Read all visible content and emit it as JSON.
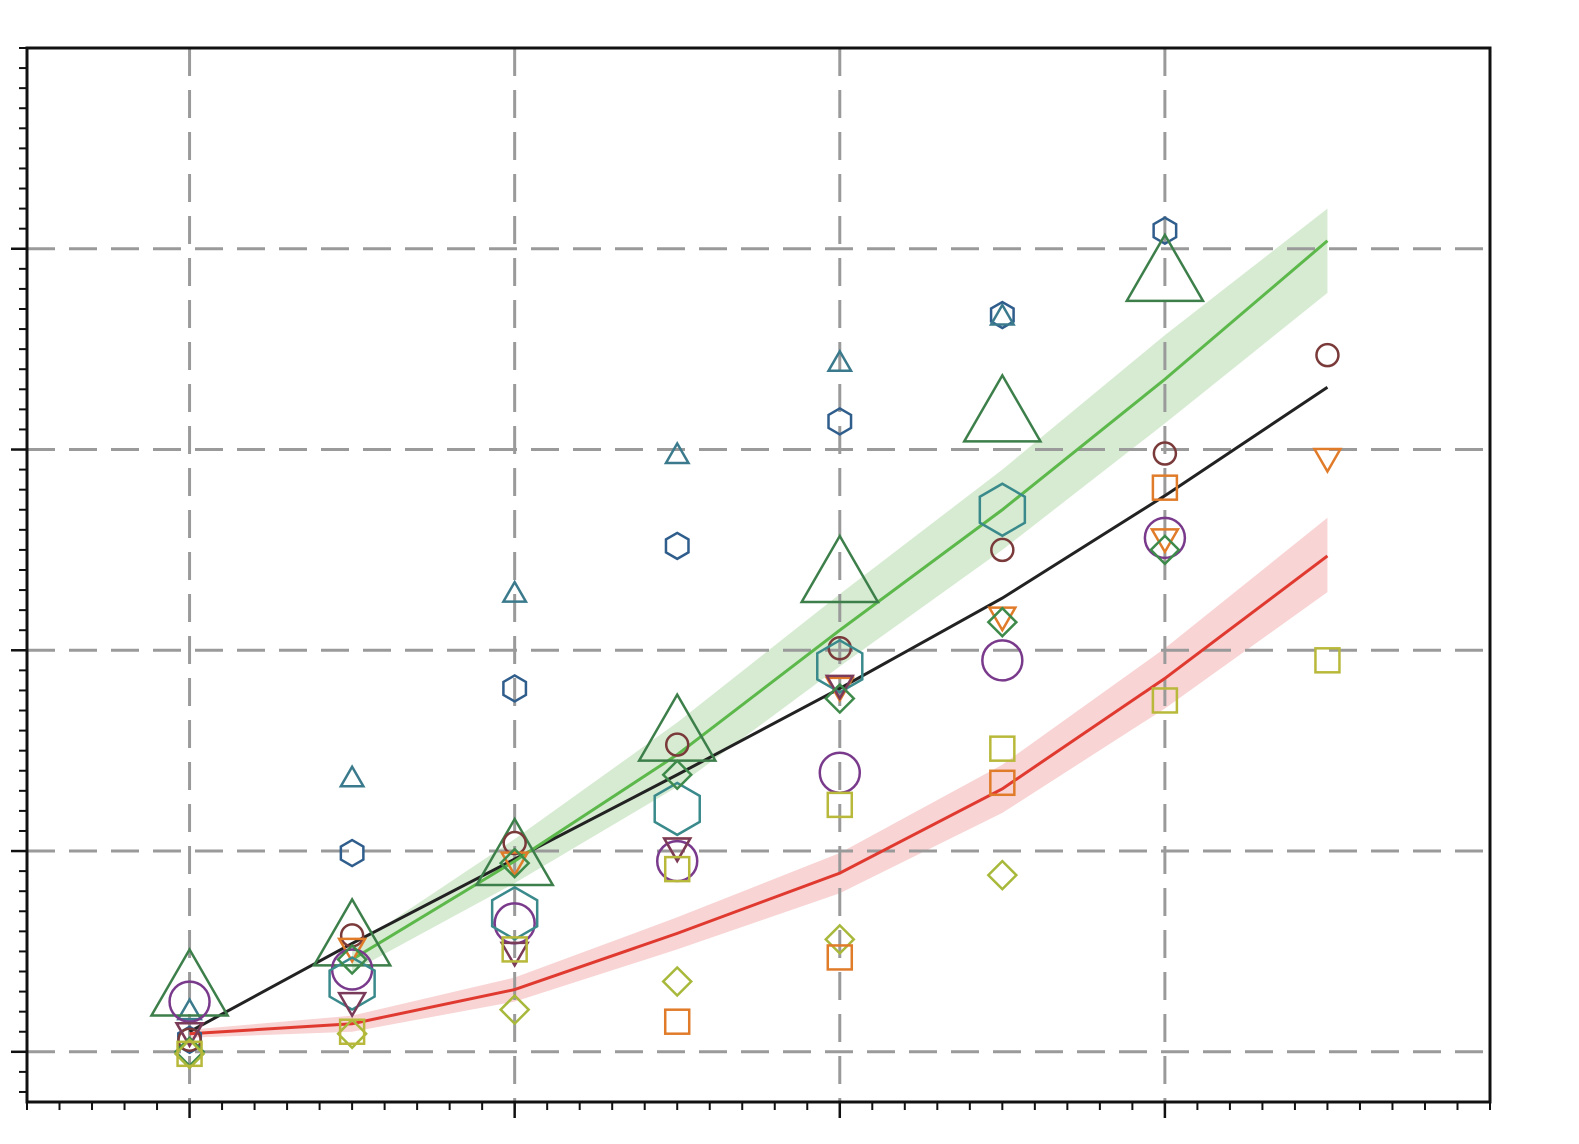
{
  "chart_data": {
    "type": "scatter",
    "xlim": [
      -0.5,
      4
    ],
    "ylim": [
      -0.25,
      5
    ],
    "xticks": [
      0,
      1,
      2,
      3
    ],
    "yticks": [
      0,
      1,
      2,
      3,
      4
    ],
    "grid": true,
    "series": [
      {
        "marker": "hexagon",
        "color": "#2f5d8c",
        "x": [
          0,
          0.5,
          1,
          1.5,
          2,
          2.5,
          3
        ],
        "values": [
          0.06,
          0.99,
          1.81,
          2.52,
          3.14,
          3.67,
          4.09
        ]
      },
      {
        "marker": "triangle-up",
        "color": "#3a7a8c",
        "x": [
          0,
          0.5,
          1,
          1.5,
          2,
          2.5
        ],
        "values": [
          0.21,
          1.37,
          2.29,
          2.98,
          3.44,
          3.67
        ]
      },
      {
        "marker": "big-triangle-up",
        "color": "#3d7f4a",
        "x": [
          0,
          0.5,
          1,
          1.5,
          2,
          2.5,
          3
        ],
        "values": [
          0.34,
          0.59,
          0.99,
          1.61,
          2.4,
          3.2,
          3.9
        ]
      },
      {
        "marker": "circle",
        "color": "#7a3a3a",
        "x": [
          0,
          0.5,
          1,
          1.5,
          2,
          2.5,
          3,
          3.5
        ],
        "values": [
          0.06,
          0.58,
          1.04,
          1.53,
          2.01,
          2.5,
          2.98,
          3.47
        ]
      },
      {
        "marker": "triangle-down",
        "color": "#e07b2a",
        "x": [
          0,
          0.5,
          1,
          1.5,
          2,
          2.5,
          3,
          3.5
        ],
        "values": [
          0.09,
          0.51,
          0.94,
          1.01,
          1.81,
          2.16,
          2.55,
          2.95
        ]
      },
      {
        "marker": "big-circle",
        "color": "#7a3a8c",
        "x": [
          0,
          0.5,
          1,
          1.5,
          2,
          2.5,
          3
        ],
        "values": [
          0.25,
          0.41,
          0.64,
          0.95,
          1.39,
          1.95,
          2.56
        ]
      },
      {
        "marker": "big-hexagon",
        "color": "#3a8a8c",
        "x": [
          0.5,
          1,
          1.5,
          2,
          2.5
        ],
        "values": [
          0.34,
          0.69,
          1.21,
          1.92,
          2.7
        ]
      },
      {
        "marker": "triangle-down",
        "color": "#7a3a5a",
        "x": [
          0,
          0.5,
          1,
          1.5,
          2
        ],
        "values": [
          0.09,
          0.24,
          0.49,
          1.01,
          1.82
        ]
      },
      {
        "marker": "diamond",
        "color": "#3d8a4a",
        "x": [
          0,
          0.5,
          1,
          1.5,
          2,
          2.5,
          3
        ],
        "values": [
          0,
          0.46,
          0.94,
          1.38,
          1.76,
          2.14,
          2.5
        ]
      },
      {
        "marker": "diamond",
        "color": "#a8b83a",
        "x": [
          0,
          0.5,
          1,
          1.5,
          2,
          2.5
        ],
        "values": [
          -0.01,
          0.09,
          0.21,
          0.35,
          0.56,
          0.88
        ]
      },
      {
        "marker": "square",
        "color": "#b8b83a",
        "x": [
          0,
          0.5,
          1,
          1.5,
          2,
          2.5,
          3,
          3.5
        ],
        "values": [
          -0.01,
          0.1,
          0.51,
          0.91,
          1.23,
          1.51,
          1.75,
          1.95
        ]
      },
      {
        "marker": "square",
        "color": "#e07b2a",
        "x": [
          1.5,
          2,
          2.5,
          3
        ],
        "values": [
          0.15,
          0.47,
          1.34,
          2.81
        ]
      }
    ],
    "lines": [
      {
        "color": "#222222",
        "x": [
          0,
          0.5,
          1,
          1.5,
          2,
          2.5,
          3,
          3.5
        ],
        "values": [
          0.1,
          0.54,
          0.96,
          1.38,
          1.81,
          2.26,
          2.77,
          3.31
        ]
      },
      {
        "color": "#5cb84a",
        "band_color": "#d6ebd2",
        "x": [
          0.5,
          1,
          1.5,
          2,
          2.5,
          3,
          3.5
        ],
        "values": [
          0.46,
          0.95,
          1.48,
          2.1,
          2.7,
          3.35,
          4.04
        ],
        "lower": [
          0.4,
          0.84,
          1.32,
          1.92,
          2.5,
          3.13,
          3.78
        ],
        "upper": [
          0.52,
          1.06,
          1.64,
          2.28,
          2.9,
          3.57,
          4.2
        ]
      },
      {
        "color": "#e03a30",
        "band_color": "#f8d4d4",
        "x": [
          0,
          0.5,
          1,
          1.5,
          2,
          2.5,
          3,
          3.5
        ],
        "values": [
          0.09,
          0.14,
          0.31,
          0.59,
          0.89,
          1.31,
          1.86,
          2.47
        ],
        "lower": [
          0.07,
          0.1,
          0.25,
          0.51,
          0.79,
          1.19,
          1.71,
          2.29
        ],
        "upper": [
          0.11,
          0.18,
          0.37,
          0.67,
          0.99,
          1.43,
          2.01,
          2.66
        ]
      }
    ]
  }
}
